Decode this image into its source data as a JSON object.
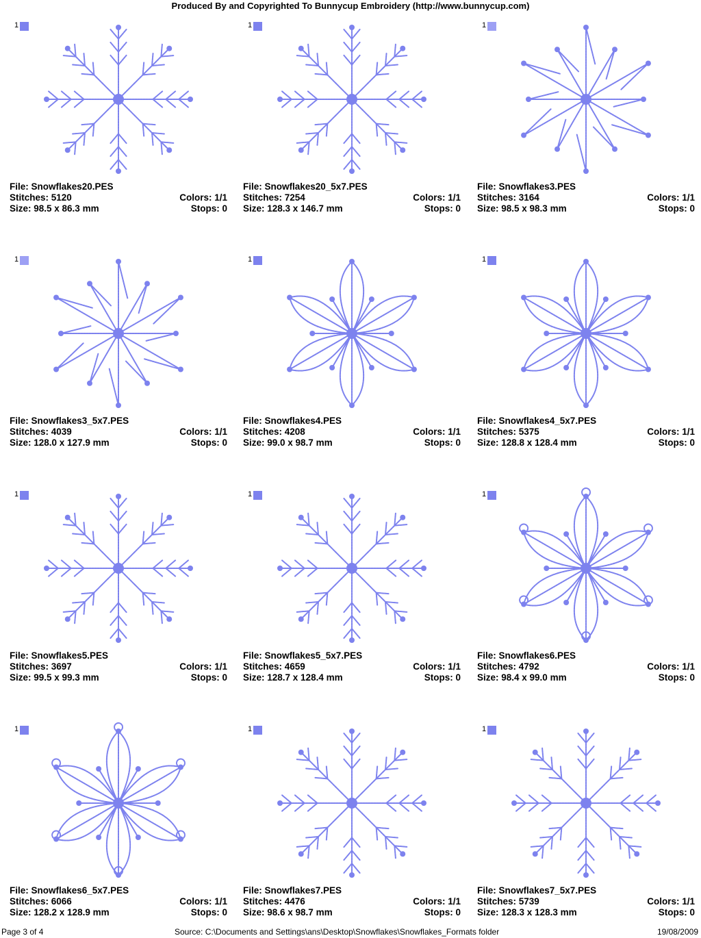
{
  "header": "Produced By and Copyrighted To Bunnycup Embroidery (http://www.bunnycup.com)",
  "colors": {
    "stitch": "#7d82ee",
    "swatch_light": "#9da0f4"
  },
  "designs": [
    {
      "file": "File: Snowflakes20.PES",
      "stitches": "Stitches: 5120",
      "size": "Size: 98.5 x 86.3 mm",
      "colors": "Colors: 1/1",
      "stops": "Stops: 0",
      "swatch_num": "1",
      "swatch_color": "#7d82ee",
      "style": "feather"
    },
    {
      "file": "File: Snowflakes20_5x7.PES",
      "stitches": "Stitches: 7254",
      "size": "Size: 128.3 x 146.7 mm",
      "colors": "Colors: 1/1",
      "stops": "Stops: 0",
      "swatch_num": "1",
      "swatch_color": "#7d82ee",
      "style": "feather"
    },
    {
      "file": "File: Snowflakes3.PES",
      "stitches": "Stitches: 3164",
      "size": "Size: 98.5 x 98.3 mm",
      "colors": "Colors: 1/1",
      "stops": "Stops: 0",
      "swatch_num": "1",
      "swatch_color": "#9da0f4",
      "style": "star"
    },
    {
      "file": "File: Snowflakes3_5x7.PES",
      "stitches": "Stitches: 4039",
      "size": "Size: 128.0 x 127.9 mm",
      "colors": "Colors: 1/1",
      "stops": "Stops: 0",
      "swatch_num": "1",
      "swatch_color": "#9da0f4",
      "style": "star"
    },
    {
      "file": "File: Snowflakes4.PES",
      "stitches": "Stitches: 4208",
      "size": "Size: 99.0 x 98.7 mm",
      "colors": "Colors: 1/1",
      "stops": "Stops: 0",
      "swatch_num": "1",
      "swatch_color": "#7d82ee",
      "style": "petal"
    },
    {
      "file": "File: Snowflakes4_5x7.PES",
      "stitches": "Stitches: 5375",
      "size": "Size: 128.8 x 128.4 mm",
      "colors": "Colors: 1/1",
      "stops": "Stops: 0",
      "swatch_num": "1",
      "swatch_color": "#7d82ee",
      "style": "petal"
    },
    {
      "file": "File: Snowflakes5.PES",
      "stitches": "Stitches: 3697",
      "size": "Size: 99.5 x 99.3 mm",
      "colors": "Colors: 1/1",
      "stops": "Stops: 0",
      "swatch_num": "1",
      "swatch_color": "#7d82ee",
      "style": "branch"
    },
    {
      "file": "File: Snowflakes5_5x7.PES",
      "stitches": "Stitches: 4659",
      "size": "Size: 128.7 x 128.4 mm",
      "colors": "Colors: 1/1",
      "stops": "Stops: 0",
      "swatch_num": "1",
      "swatch_color": "#7d82ee",
      "style": "branch"
    },
    {
      "file": "File: Snowflakes6.PES",
      "stitches": "Stitches: 4792",
      "size": "Size: 98.4 x 99.0 mm",
      "colors": "Colors: 1/1",
      "stops": "Stops: 0",
      "swatch_num": "1",
      "swatch_color": "#7d82ee",
      "style": "curl"
    },
    {
      "file": "File: Snowflakes6_5x7.PES",
      "stitches": "Stitches: 6066",
      "size": "Size: 128.2 x 128.9 mm",
      "colors": "Colors: 1/1",
      "stops": "Stops: 0",
      "swatch_num": "1",
      "swatch_color": "#7d82ee",
      "style": "curl"
    },
    {
      "file": "File: Snowflakes7.PES",
      "stitches": "Stitches: 4476",
      "size": "Size: 98.6 x 98.7 mm",
      "colors": "Colors: 1/1",
      "stops": "Stops: 0",
      "swatch_num": "1",
      "swatch_color": "#7d82ee",
      "style": "fern"
    },
    {
      "file": "File: Snowflakes7_5x7.PES",
      "stitches": "Stitches: 5739",
      "size": "Size: 128.3 x 128.3 mm",
      "colors": "Colors: 1/1",
      "stops": "Stops: 0",
      "swatch_num": "1",
      "swatch_color": "#7d82ee",
      "style": "fern"
    }
  ],
  "footer": {
    "page": "Page 3 of 4",
    "source": "Source: C:\\Documents and Settings\\ans\\Desktop\\Snowflakes\\Snowflakes_Formats folder",
    "date": "19/08/2009"
  }
}
